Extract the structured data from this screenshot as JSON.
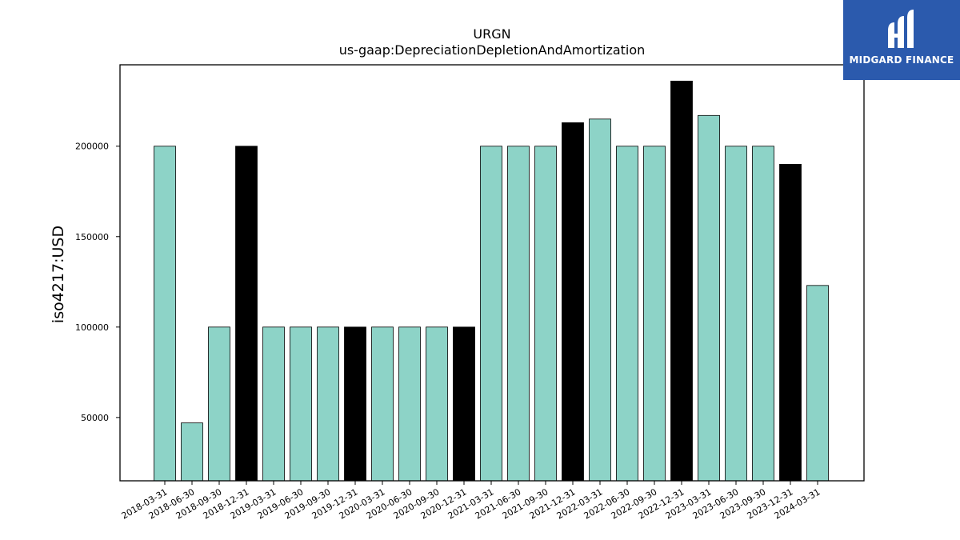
{
  "chart_data": {
    "type": "bar",
    "title": "URGN",
    "subtitle": "us-gaap:DepreciationDepletionAndAmortization",
    "xlabel": "",
    "ylabel": "iso4217:USD",
    "ylim": [
      15000,
      245000
    ],
    "yticks": [
      50000,
      100000,
      150000,
      200000
    ],
    "grid": false,
    "categories": [
      "2018-03-31",
      "2018-06-30",
      "2018-09-30",
      "2018-12-31",
      "2019-03-31",
      "2019-06-30",
      "2019-09-30",
      "2019-12-31",
      "2020-03-31",
      "2020-06-30",
      "2020-09-30",
      "2020-12-31",
      "2021-03-31",
      "2021-06-30",
      "2021-09-30",
      "2021-12-31",
      "2022-03-31",
      "2022-06-30",
      "2022-09-30",
      "2022-12-31",
      "2023-03-31",
      "2023-06-30",
      "2023-09-30",
      "2023-12-31",
      "2024-03-31"
    ],
    "values": [
      200000,
      47000,
      100000,
      200000,
      100000,
      100000,
      100000,
      100000,
      100000,
      100000,
      100000,
      100000,
      200000,
      200000,
      200000,
      213000,
      215000,
      200000,
      200000,
      236000,
      217000,
      200000,
      200000,
      190000,
      123000
    ],
    "colors": {
      "quarter": "#8dd3c7",
      "year_end": "#000000"
    },
    "year_end_categories": [
      "2018-12-31",
      "2019-12-31",
      "2020-12-31",
      "2021-12-31",
      "2022-12-31",
      "2023-12-31"
    ]
  },
  "logo": {
    "text": "MIDGARD FINANCE",
    "icon": "midgard-logo-icon"
  }
}
